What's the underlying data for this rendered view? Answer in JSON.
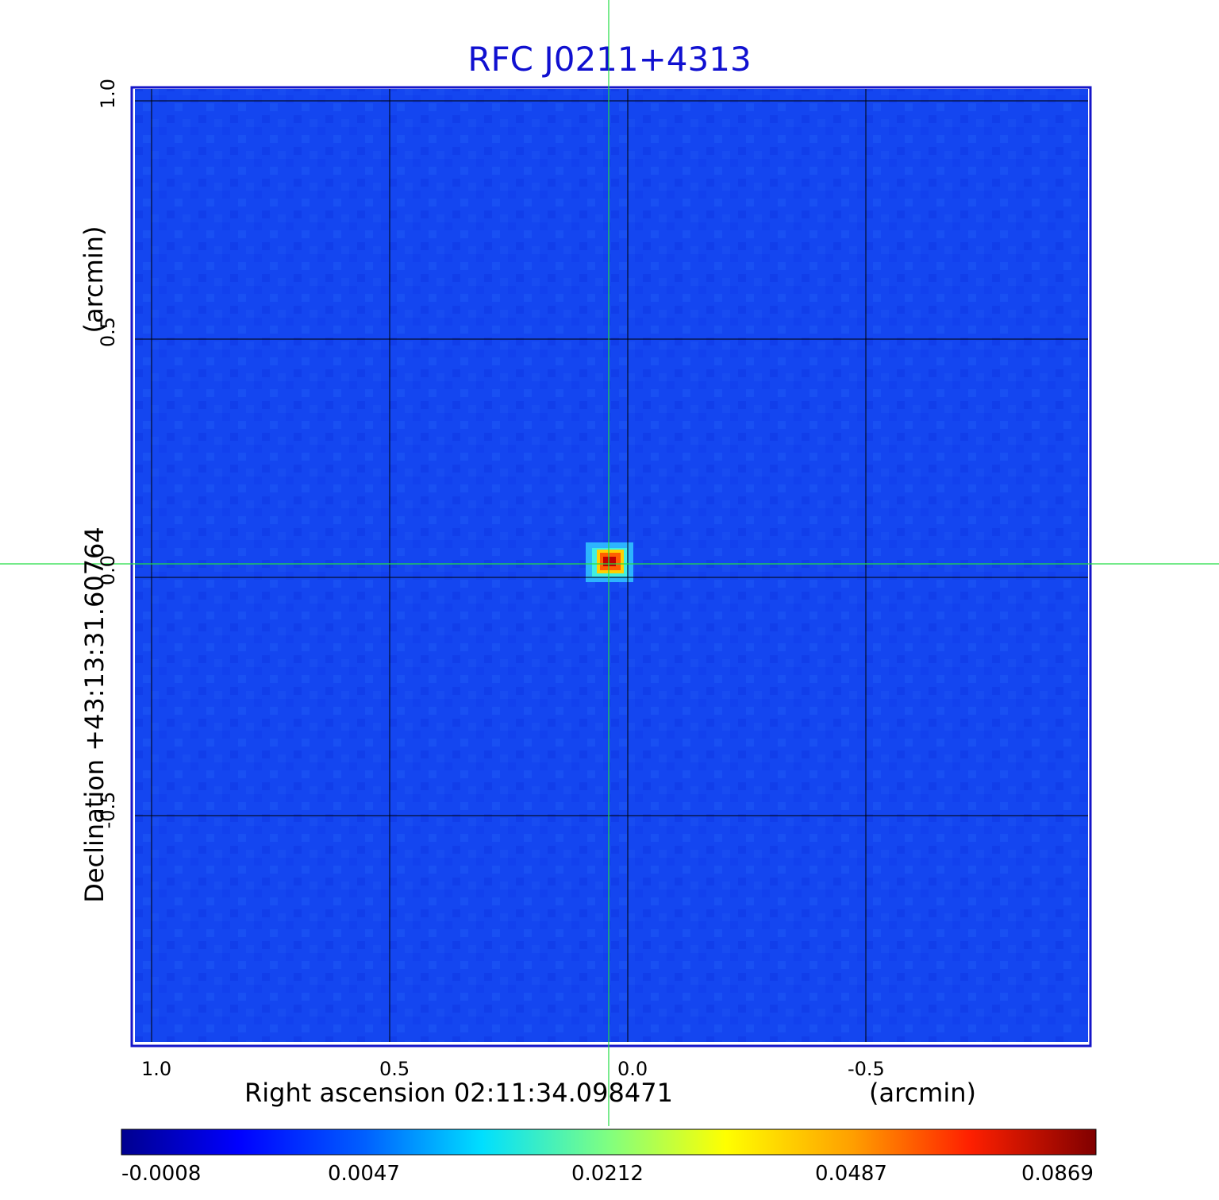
{
  "title": "RFC J0211+4313",
  "x_axis": {
    "label": "Right ascension  02:11:34.098471",
    "unit": "(arcmin)",
    "ticks": [
      "1.0",
      "0.5",
      "0.0",
      "-0.5"
    ]
  },
  "y_axis": {
    "label": "Declination  +43:13:31.60764",
    "unit": "(arcmin)",
    "ticks": [
      "1.0",
      "0.5",
      "0.0",
      "-0.5"
    ]
  },
  "colorbar": {
    "ticks": [
      "-0.0008",
      "0.0047",
      "0.0212",
      "0.0487",
      "0.0869"
    ],
    "colormap": "jet"
  },
  "colors": {
    "title": "#1010d0",
    "frame": "#1515c8",
    "background_field": "#1446f0",
    "crosshair": "#22dd44",
    "grid": "#000000"
  },
  "image": {
    "description_kind": "radio map with bright compact source at center",
    "peak_value": 0.0869
  }
}
